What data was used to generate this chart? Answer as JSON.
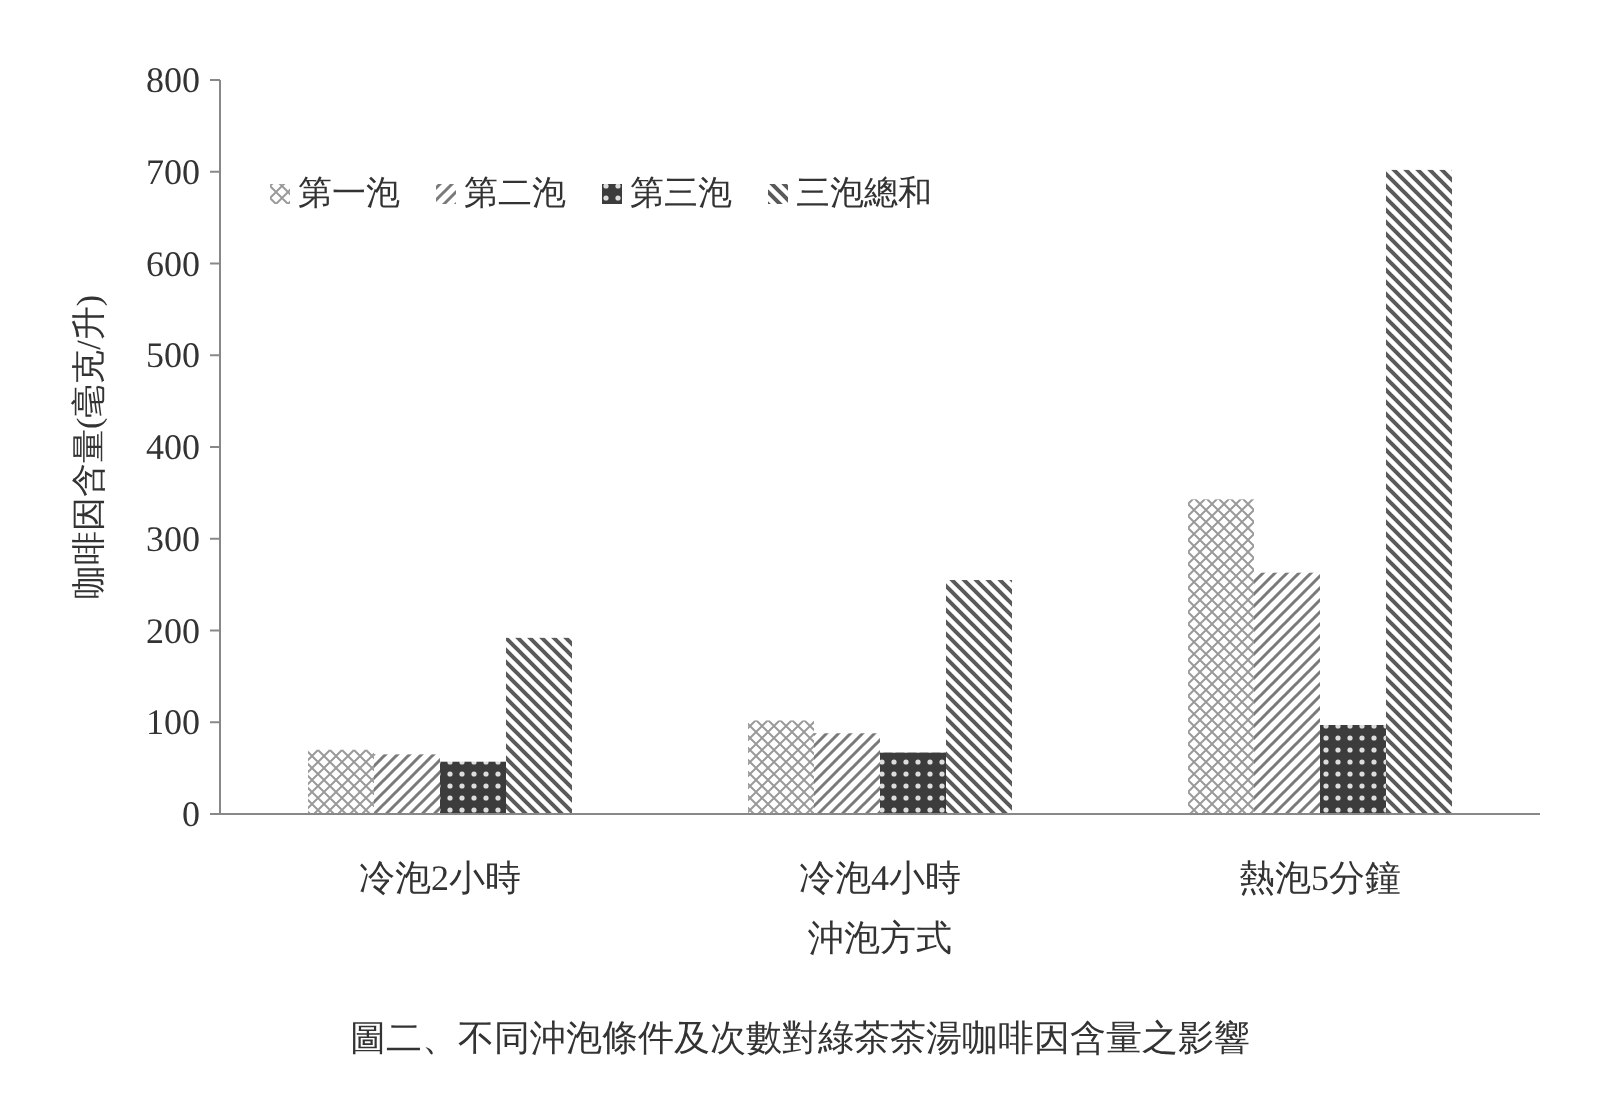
{
  "chart_data": {
    "type": "bar",
    "xlabel": "沖泡方式",
    "ylabel": "咖啡因含量(毫克/升)",
    "categories": [
      "冷泡2小時",
      "冷泡4小時",
      "熱泡5分鐘"
    ],
    "series": [
      {
        "name": "第一泡",
        "color": "#9a9a9a",
        "values": [
          70,
          102,
          343
        ]
      },
      {
        "name": "第二泡",
        "color": "#7a7a7a",
        "values": [
          65,
          88,
          263
        ]
      },
      {
        "name": "第三泡",
        "color": "#3c3c3c",
        "values": [
          57,
          67,
          97
        ]
      },
      {
        "name": "三泡總和",
        "color": "#5a5a5a",
        "values": [
          192,
          255,
          702
        ]
      }
    ],
    "ylim": [
      0,
      800
    ],
    "yticks": [
      0,
      100,
      200,
      300,
      400,
      500,
      600,
      700,
      800
    ],
    "grid": false,
    "legend": "top left",
    "annotations": [
      "圖二、不同沖泡條件及次數對綠茶茶湯咖啡因含量之影響"
    ]
  }
}
